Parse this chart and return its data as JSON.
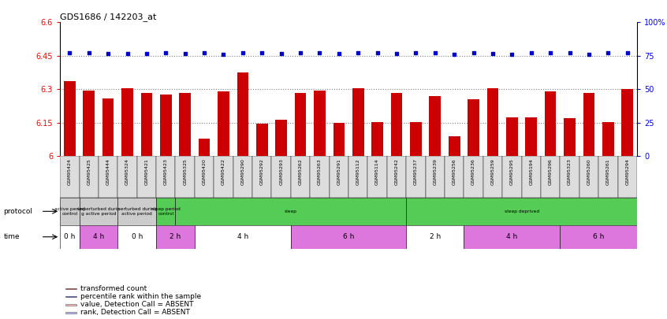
{
  "title": "GDS1686 / 142203_at",
  "samples": [
    "GSM95424",
    "GSM95425",
    "GSM95444",
    "GSM95324",
    "GSM95421",
    "GSM95423",
    "GSM95325",
    "GSM95420",
    "GSM95422",
    "GSM95290",
    "GSM95292",
    "GSM95293",
    "GSM95262",
    "GSM95263",
    "GSM95291",
    "GSM95112",
    "GSM95114",
    "GSM95242",
    "GSM95237",
    "GSM95239",
    "GSM95256",
    "GSM95236",
    "GSM95259",
    "GSM95295",
    "GSM95194",
    "GSM95296",
    "GSM95323",
    "GSM95260",
    "GSM95261",
    "GSM95294"
  ],
  "bar_values": [
    6.335,
    6.295,
    6.26,
    6.305,
    6.285,
    6.275,
    6.285,
    6.08,
    6.29,
    6.375,
    6.145,
    6.165,
    6.285,
    6.295,
    6.15,
    6.305,
    6.155,
    6.285,
    6.155,
    6.27,
    6.09,
    6.255,
    6.305,
    6.175,
    6.175,
    6.29,
    6.17,
    6.285,
    6.155,
    6.3
  ],
  "percentile_values": [
    6.465,
    6.465,
    6.46,
    6.46,
    6.46,
    6.465,
    6.46,
    6.465,
    6.455,
    6.465,
    6.465,
    6.46,
    6.465,
    6.465,
    6.46,
    6.465,
    6.465,
    6.46,
    6.465,
    6.465,
    6.455,
    6.465,
    6.46,
    6.455,
    6.465,
    6.465,
    6.465,
    6.455,
    6.465,
    6.465
  ],
  "ylim": [
    6.0,
    6.6
  ],
  "yticks": [
    6.0,
    6.15,
    6.3,
    6.45,
    6.6
  ],
  "ytick_labels": [
    "6",
    "6.15",
    "6.3",
    "6.45",
    "6.6"
  ],
  "right_yticks": [
    0,
    25,
    50,
    75,
    100
  ],
  "right_ytick_labels": [
    "0",
    "25",
    "50",
    "75",
    "100%"
  ],
  "bar_color": "#cc0000",
  "dot_color": "#0000cc",
  "dotted_line_values": [
    6.15,
    6.3,
    6.45
  ],
  "proto_data": [
    {
      "label": "active period\ncontrol",
      "start": 0,
      "end": 1,
      "color": "#cccccc"
    },
    {
      "label": "unperturbed durin\ng active period",
      "start": 1,
      "end": 3,
      "color": "#cccccc"
    },
    {
      "label": "perturbed during\nactive period",
      "start": 3,
      "end": 5,
      "color": "#cccccc"
    },
    {
      "label": "sleep period\ncontrol",
      "start": 5,
      "end": 6,
      "color": "#55cc55"
    },
    {
      "label": "sleep",
      "start": 6,
      "end": 18,
      "color": "#55cc55"
    },
    {
      "label": "sleep deprived",
      "start": 18,
      "end": 30,
      "color": "#55cc55"
    }
  ],
  "time_data": [
    {
      "label": "0 h",
      "start": 0,
      "end": 1,
      "color": "#ffffff"
    },
    {
      "label": "4 h",
      "start": 1,
      "end": 3,
      "color": "#dd77dd"
    },
    {
      "label": "0 h",
      "start": 3,
      "end": 5,
      "color": "#ffffff"
    },
    {
      "label": "2 h",
      "start": 5,
      "end": 7,
      "color": "#dd77dd"
    },
    {
      "label": "4 h",
      "start": 7,
      "end": 12,
      "color": "#ffffff"
    },
    {
      "label": "6 h",
      "start": 12,
      "end": 18,
      "color": "#dd77dd"
    },
    {
      "label": "2 h",
      "start": 18,
      "end": 21,
      "color": "#ffffff"
    },
    {
      "label": "4 h",
      "start": 21,
      "end": 26,
      "color": "#dd77dd"
    },
    {
      "label": "6 h",
      "start": 26,
      "end": 30,
      "color": "#dd77dd"
    }
  ],
  "legend_colors": [
    "#cc0000",
    "#0000cc",
    "#ffbbbb",
    "#bbbbff"
  ],
  "legend_labels": [
    "transformed count",
    "percentile rank within the sample",
    "value, Detection Call = ABSENT",
    "rank, Detection Call = ABSENT"
  ]
}
